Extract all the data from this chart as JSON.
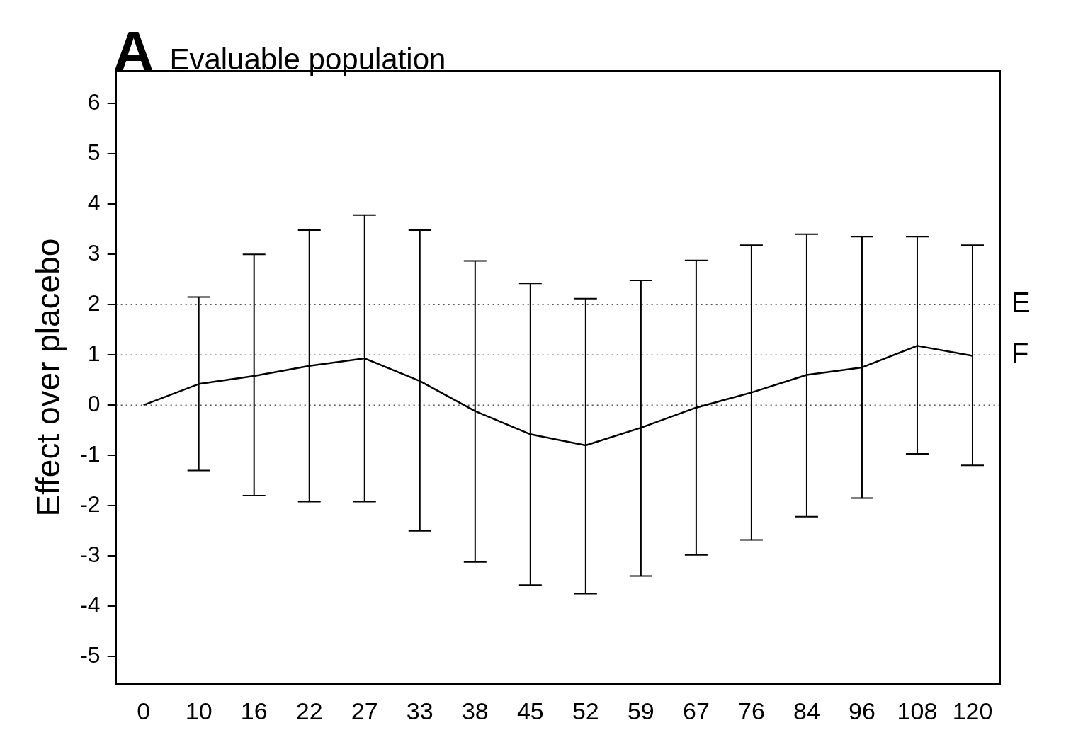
{
  "chart_data": {
    "type": "line",
    "title": "Evaluable population",
    "ylabel": "Effect over placebo",
    "annotations": [
      "A"
    ],
    "categories": [
      "0",
      "10",
      "16",
      "22",
      "27",
      "33",
      "38",
      "45",
      "52",
      "59",
      "67",
      "76",
      "84",
      "96",
      "108",
      "120"
    ],
    "series": [
      {
        "color": "#000000",
        "values": [
          0,
          0.42,
          0.58,
          0.78,
          0.93,
          0.48,
          -0.12,
          -0.58,
          -0.8,
          -0.45,
          -0.05,
          0.25,
          0.6,
          0.75,
          1.18,
          0.98
        ],
        "errors": [
          null,
          [
            -1.3,
            2.15
          ],
          [
            -1.8,
            3.0
          ],
          [
            -1.92,
            3.48
          ],
          [
            -1.92,
            3.78
          ],
          [
            -2.5,
            3.48
          ],
          [
            -3.12,
            2.87
          ],
          [
            -3.58,
            2.42
          ],
          [
            -3.75,
            2.12
          ],
          [
            -3.4,
            2.48
          ],
          [
            -2.98,
            2.88
          ],
          [
            -2.68,
            3.18
          ],
          [
            -2.22,
            3.4
          ],
          [
            -1.85,
            3.35
          ],
          [
            -0.97,
            3.35
          ],
          [
            -1.2,
            3.18
          ]
        ]
      }
    ],
    "ylim": [
      -5.55,
      6.65
    ],
    "yticks": [
      -5,
      -4,
      -3,
      -2,
      -1,
      0,
      1,
      2,
      3,
      4,
      5,
      6
    ],
    "ref_lines": [
      {
        "axis": "y",
        "value": 0,
        "label": null,
        "line_style": "dotted"
      },
      {
        "axis": "y",
        "value": 1,
        "label": "F",
        "line_style": "dotted"
      },
      {
        "axis": "y",
        "value": 2,
        "label": "E",
        "line_style": "dotted"
      }
    ],
    "grid": false,
    "legend": false,
    "marker": "none",
    "line_style": "solid"
  }
}
